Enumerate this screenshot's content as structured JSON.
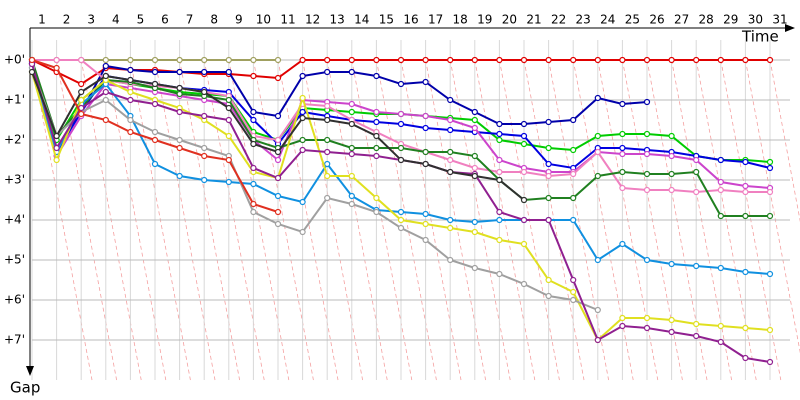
{
  "chart_data": {
    "type": "line",
    "x_label": "Time",
    "y_label": "Gap",
    "categories": [
      "1",
      "2",
      "3",
      "4",
      "5",
      "6",
      "7",
      "8",
      "9",
      "10",
      "11",
      "12",
      "13",
      "14",
      "15",
      "16",
      "17",
      "18",
      "19",
      "20",
      "21",
      "22",
      "23",
      "24",
      "25",
      "26",
      "27",
      "28",
      "29",
      "30",
      "31"
    ],
    "ylim": [
      0,
      8
    ],
    "y_inverted": true,
    "grid": true,
    "yticks": [
      {
        "value": 0,
        "label": "+0'"
      },
      {
        "value": 1,
        "label": "+1'"
      },
      {
        "value": 2,
        "label": "+2'"
      },
      {
        "value": 3,
        "label": "+3'"
      },
      {
        "value": 4,
        "label": "+4'"
      },
      {
        "value": 5,
        "label": "+5'"
      },
      {
        "value": 6,
        "label": "+6'"
      },
      {
        "value": 7,
        "label": "+7'"
      }
    ],
    "series": [
      {
        "color": "#a0a060",
        "values": [
          0,
          0,
          0,
          0,
          0,
          0,
          0,
          0,
          0,
          0,
          0,
          null,
          null,
          null,
          null,
          null,
          null,
          null,
          null,
          null,
          null,
          null,
          null,
          null,
          null,
          null,
          null,
          null,
          null,
          null,
          null
        ]
      },
      {
        "color": "#e00000",
        "values": [
          0,
          0.3,
          0.6,
          0.2,
          0.25,
          0.25,
          0.3,
          0.35,
          0.35,
          0.4,
          0.45,
          0,
          0,
          0,
          0,
          0,
          0,
          0,
          0,
          0,
          0,
          0,
          0,
          0,
          0,
          0,
          0,
          0,
          0,
          0,
          0
        ]
      },
      {
        "color": "#0000aa",
        "values": [
          0.1,
          2.2,
          1.3,
          0.15,
          0.25,
          0.3,
          0.3,
          0.3,
          0.3,
          1.3,
          1.4,
          0.4,
          0.3,
          0.3,
          0.4,
          0.6,
          0.55,
          1.0,
          1.3,
          1.6,
          1.6,
          1.55,
          1.5,
          0.95,
          1.1,
          1.05,
          null,
          null,
          null,
          null,
          null
        ]
      },
      {
        "color": "#00cc00",
        "values": [
          0.1,
          2.0,
          1.0,
          0.5,
          0.6,
          0.7,
          0.8,
          0.85,
          0.9,
          1.8,
          2.0,
          1.2,
          1.25,
          1.3,
          1.35,
          1.35,
          1.4,
          1.45,
          1.5,
          2.0,
          2.1,
          2.2,
          2.25,
          1.9,
          1.85,
          1.85,
          1.9,
          2.4,
          2.5,
          2.5,
          2.55
        ]
      },
      {
        "color": "#0000e0",
        "values": [
          0.05,
          2.3,
          1.3,
          0.4,
          0.5,
          0.6,
          0.7,
          0.75,
          0.8,
          1.5,
          2.1,
          1.3,
          1.4,
          1.5,
          1.55,
          1.6,
          1.7,
          1.75,
          1.8,
          1.85,
          1.9,
          2.6,
          2.7,
          2.2,
          2.2,
          2.25,
          2.3,
          2.4,
          2.5,
          2.55,
          2.7
        ]
      },
      {
        "color": "#cc44cc",
        "values": [
          0.1,
          2.4,
          1.4,
          0.6,
          0.7,
          0.8,
          0.9,
          1.0,
          1.1,
          2.0,
          2.5,
          1.0,
          1.05,
          1.1,
          1.3,
          1.35,
          1.4,
          1.5,
          1.7,
          2.5,
          2.7,
          2.8,
          2.8,
          2.3,
          2.35,
          2.35,
          2.4,
          2.5,
          3.05,
          3.15,
          3.2
        ]
      },
      {
        "color": "#f080c0",
        "values": [
          0,
          0,
          0,
          0.5,
          0.6,
          0.65,
          0.7,
          0.8,
          0.9,
          1.9,
          2.0,
          1.1,
          1.15,
          1.5,
          1.8,
          2.1,
          2.3,
          2.5,
          2.7,
          2.8,
          2.8,
          2.9,
          2.85,
          2.3,
          3.2,
          3.25,
          3.25,
          3.3,
          3.25,
          3.3,
          3.3
        ]
      },
      {
        "color": "#208020",
        "values": [
          0,
          1.9,
          1.2,
          0.5,
          0.55,
          0.7,
          0.85,
          0.9,
          1.0,
          2.0,
          2.2,
          2.0,
          2.0,
          2.2,
          2.2,
          2.2,
          2.3,
          2.3,
          2.4,
          3.0,
          3.5,
          3.45,
          3.45,
          2.9,
          2.8,
          2.85,
          2.85,
          2.8,
          3.9,
          3.9,
          3.9
        ]
      },
      {
        "color": "#1090e0",
        "values": [
          0.2,
          2.3,
          1.1,
          0.6,
          1.4,
          2.6,
          2.9,
          3.0,
          3.05,
          3.1,
          3.4,
          3.55,
          2.6,
          3.4,
          3.75,
          3.8,
          3.85,
          4.0,
          4.05,
          4.0,
          4.0,
          4.0,
          4.0,
          5.0,
          4.6,
          5.0,
          5.1,
          5.15,
          5.2,
          5.3,
          5.35
        ]
      },
      {
        "color": "#e0e020",
        "values": [
          0.3,
          2.5,
          1.0,
          0.5,
          0.8,
          1.0,
          1.2,
          1.5,
          1.9,
          2.8,
          2.95,
          0.95,
          2.9,
          2.9,
          3.45,
          4.0,
          4.1,
          4.2,
          4.3,
          4.5,
          4.6,
          5.5,
          5.8,
          7.0,
          6.45,
          6.45,
          6.5,
          6.6,
          6.65,
          6.7,
          6.75
        ]
      },
      {
        "color": "#a0a0a0",
        "values": [
          0.2,
          1.9,
          1.3,
          1.0,
          1.5,
          1.8,
          2.0,
          2.2,
          2.4,
          3.8,
          4.1,
          4.3,
          3.45,
          3.6,
          3.8,
          4.2,
          4.5,
          5.0,
          5.2,
          5.35,
          5.6,
          5.9,
          6.0,
          6.25,
          null,
          null,
          null,
          null,
          null,
          null,
          null
        ]
      },
      {
        "color": "#902090",
        "values": [
          0.1,
          2.2,
          1.2,
          0.8,
          1.0,
          1.1,
          1.3,
          1.4,
          1.5,
          2.7,
          2.95,
          2.25,
          2.3,
          2.35,
          2.4,
          2.5,
          2.6,
          2.8,
          2.85,
          3.8,
          4.0,
          4.0,
          5.5,
          7.0,
          6.65,
          6.7,
          6.8,
          6.9,
          7.05,
          7.45,
          7.55
        ]
      },
      {
        "color": "#303030",
        "values": [
          0.3,
          1.9,
          0.8,
          0.4,
          0.5,
          0.6,
          0.7,
          0.8,
          1.2,
          2.1,
          2.3,
          1.45,
          1.5,
          1.6,
          1.9,
          2.5,
          2.6,
          2.8,
          2.9,
          3.0,
          3.5,
          null,
          null,
          null,
          null,
          null,
          null,
          null,
          null,
          null,
          null
        ]
      },
      {
        "color": "#e03020",
        "values": [
          0,
          0.2,
          1.35,
          1.5,
          1.8,
          2.0,
          2.2,
          2.4,
          2.5,
          3.6,
          3.8,
          null,
          null,
          null,
          null,
          null,
          null,
          null,
          null,
          null,
          null,
          null,
          null,
          null,
          null,
          null,
          null,
          null,
          null,
          null,
          null
        ]
      }
    ]
  }
}
